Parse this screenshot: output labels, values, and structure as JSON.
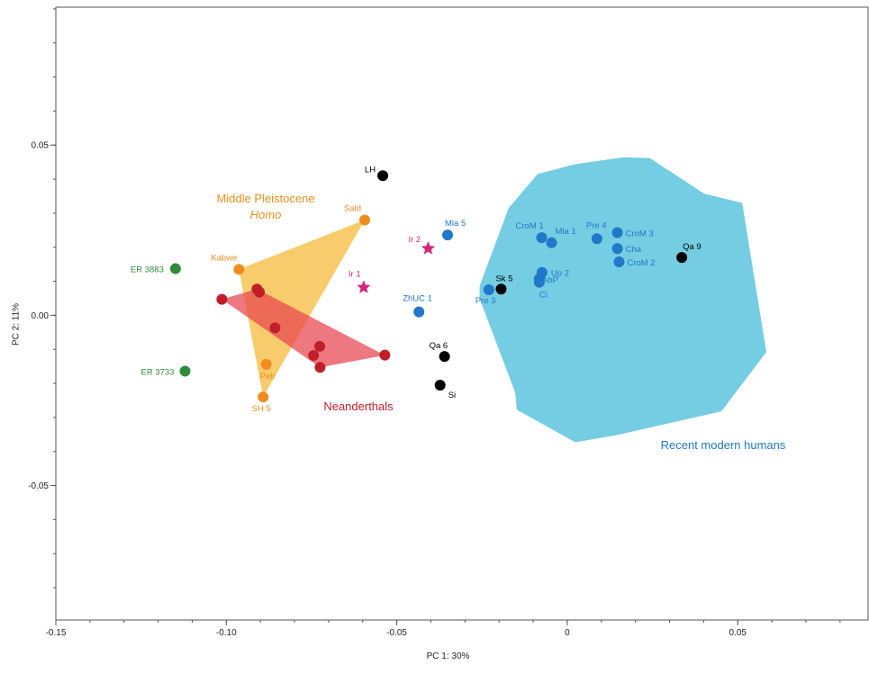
{
  "chart_data": {
    "type": "scatter",
    "title": "",
    "xlabel": "PC 1: 30%",
    "ylabel": "PC 2: 11%",
    "xlim": [
      -0.15,
      0.0885
    ],
    "ylim": [
      -0.0895,
      0.0905
    ],
    "xticks": [
      -0.15,
      -0.1,
      -0.05,
      0,
      0.05
    ],
    "xtick_labels": [
      "-0.15",
      "-0.10",
      "-0.05",
      "0",
      "0.05"
    ],
    "yticks": [
      -0.05,
      0.0,
      0.05
    ],
    "ytick_labels": [
      "-0.05",
      "0.00",
      "0.05"
    ],
    "grid": false,
    "colors": {
      "middle_pleistocene": "#f08c1e",
      "middle_pleistocene_fill": "#f5b833",
      "neanderthals": "#c01f28",
      "neanderthals_fill": "#e8444d",
      "modern": "#1f78c8",
      "modern_fill": "#5cc4dd",
      "homo_erectus": "#2e8b3a",
      "other": "#000000",
      "irhoud": "#d4267a"
    },
    "group_labels": [
      {
        "key": "mp",
        "line1": "Middle Pleistocene",
        "line2": "Homo",
        "color": "#e8901e"
      },
      {
        "key": "nean",
        "line1": "Neanderthals",
        "line2": "",
        "color": "#c01f28"
      },
      {
        "key": "mod",
        "line1": "Recent modern humans",
        "line2": "",
        "color": "#1f78c8"
      }
    ],
    "hulls": [
      {
        "name": "Recent modern humans",
        "fill": "#5cc4dd",
        "points": [
          [
            -0.0257,
            0.0049
          ],
          [
            -0.0257,
            0.0086
          ],
          [
            -0.0172,
            0.0315
          ],
          [
            -0.0087,
            0.0415
          ],
          [
            0.0024,
            0.0444
          ],
          [
            0.0166,
            0.0464
          ],
          [
            0.0242,
            0.0462
          ],
          [
            0.0402,
            0.0357
          ],
          [
            0.0513,
            0.033
          ],
          [
            0.0584,
            -0.0108
          ],
          [
            0.0452,
            -0.0282
          ],
          [
            0.0148,
            -0.0351
          ],
          [
            0.0024,
            -0.0373
          ],
          [
            -0.0148,
            -0.0277
          ],
          [
            -0.0153,
            -0.0226
          ],
          [
            -0.0257,
            0.0049
          ]
        ]
      },
      {
        "name": "Middle Pleistocene Homo",
        "fill": "#f5b833",
        "points": [
          [
            -0.0963,
            0.0135
          ],
          [
            -0.0594,
            0.028
          ],
          [
            -0.0892,
            -0.024
          ],
          [
            -0.0963,
            0.0135
          ]
        ]
      },
      {
        "name": "Neanderthals",
        "fill": "#e8444d",
        "points": [
          [
            -0.1013,
            0.0047
          ],
          [
            -0.091,
            0.0077
          ],
          [
            -0.0535,
            -0.0117
          ],
          [
            -0.0725,
            -0.0153
          ],
          [
            -0.1013,
            0.0047
          ]
        ]
      }
    ],
    "series": [
      {
        "name": "Middle Pleistocene Homo",
        "color": "#f08c1e",
        "marker": "circle",
        "points": [
          {
            "label": "Sald",
            "x": -0.0594,
            "y": 0.028
          },
          {
            "label": "Kabwe",
            "x": -0.0963,
            "y": 0.0135
          },
          {
            "label": "Petr",
            "x": -0.0883,
            "y": -0.0144
          },
          {
            "label": "SH 5",
            "x": -0.0892,
            "y": -0.024
          }
        ]
      },
      {
        "name": "Neanderthals",
        "color": "#c01f28",
        "marker": "circle",
        "points": [
          {
            "label": "",
            "x": -0.1013,
            "y": 0.0047
          },
          {
            "label": "",
            "x": -0.091,
            "y": 0.0077
          },
          {
            "label": "",
            "x": -0.0903,
            "y": 0.0068
          },
          {
            "label": "",
            "x": -0.0857,
            "y": -0.0037
          },
          {
            "label": "",
            "x": -0.0726,
            "y": -0.0091
          },
          {
            "label": "",
            "x": -0.0744,
            "y": -0.0118
          },
          {
            "label": "",
            "x": -0.0725,
            "y": -0.0153
          },
          {
            "label": "",
            "x": -0.0535,
            "y": -0.0117
          }
        ]
      },
      {
        "name": "Recent modern humans",
        "color": "#1f78c8",
        "marker": "circle",
        "points": [
          {
            "label": "Mla 5",
            "x": -0.0351,
            "y": 0.0236
          },
          {
            "label": "ZhUC 1",
            "x": -0.0435,
            "y": 0.001
          },
          {
            "label": "Pre 3",
            "x": -0.023,
            "y": 0.0075
          },
          {
            "label": "CroM 1",
            "x": -0.0075,
            "y": 0.0228
          },
          {
            "label": "Mla 1",
            "x": -0.0046,
            "y": 0.0213
          },
          {
            "label": "Up 2",
            "x": -0.0074,
            "y": 0.0126
          },
          {
            "label": "AbP",
            "x": -0.0082,
            "y": 0.0107
          },
          {
            "label": "Ci",
            "x": -0.0082,
            "y": 0.0097
          },
          {
            "label": "Pre 4",
            "x": 0.0087,
            "y": 0.0225
          },
          {
            "label": "CroM 3",
            "x": 0.0147,
            "y": 0.0243
          },
          {
            "label": "Cha",
            "x": 0.0147,
            "y": 0.0196
          },
          {
            "label": "CroM 2",
            "x": 0.0152,
            "y": 0.0157
          }
        ]
      },
      {
        "name": "Homo erectus",
        "color": "#2e8b3a",
        "marker": "circle",
        "points": [
          {
            "label": "ER 3883",
            "x": -0.1149,
            "y": 0.0137
          },
          {
            "label": "ER 3733",
            "x": -0.1121,
            "y": -0.0164
          }
        ]
      },
      {
        "name": "Other fossils",
        "color": "#000000",
        "marker": "circle",
        "points": [
          {
            "label": "LH",
            "x": -0.0541,
            "y": 0.041
          },
          {
            "label": "Sk 5",
            "x": -0.0194,
            "y": 0.0077
          },
          {
            "label": "Qa 6",
            "x": -0.036,
            "y": -0.0121
          },
          {
            "label": "Si",
            "x": -0.0373,
            "y": -0.0205
          },
          {
            "label": "Qa 9",
            "x": 0.0336,
            "y": 0.017
          }
        ]
      },
      {
        "name": "Jebel Irhoud",
        "color": "#d4267a",
        "marker": "star",
        "points": [
          {
            "label": "Ir 2",
            "x": -0.0408,
            "y": 0.0196
          },
          {
            "label": "Ir 1",
            "x": -0.0597,
            "y": 0.0082
          }
        ]
      }
    ]
  }
}
